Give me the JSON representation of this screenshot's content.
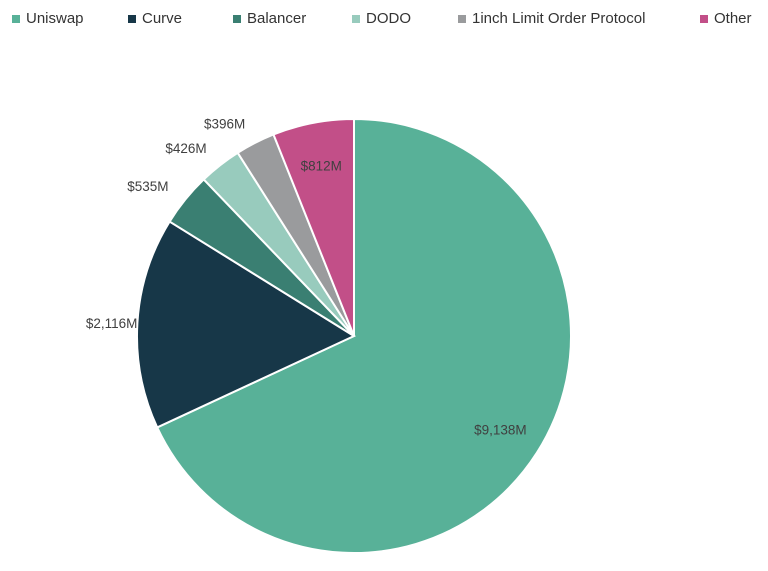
{
  "chart_data": {
    "type": "pie",
    "title": "",
    "legend_position": "top",
    "series": [
      {
        "name": "Uniswap",
        "value": 9138,
        "label": "$9,138M",
        "color": "#58b198"
      },
      {
        "name": "Curve",
        "value": 2116,
        "label": "$2,116M",
        "color": "#173748"
      },
      {
        "name": "Balancer",
        "value": 535,
        "label": "$535M",
        "color": "#3a7f72"
      },
      {
        "name": "DODO",
        "value": 426,
        "label": "$426M",
        "color": "#98cbbd"
      },
      {
        "name": "1inch Limit Order Protocol",
        "value": 396,
        "label": "$396M",
        "color": "#9a9b9d"
      },
      {
        "name": "Other",
        "value": 812,
        "label": "$812M",
        "color": "#c24f88"
      }
    ]
  }
}
